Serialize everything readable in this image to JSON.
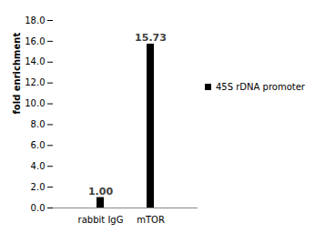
{
  "chart_data": {
    "type": "bar",
    "categories": [
      "rabbit IgG",
      "mTOR"
    ],
    "series": [
      {
        "name": "45S rDNA promoter",
        "color": "#000000",
        "values": [
          1.0,
          15.73
        ],
        "value_labels": [
          "1.00",
          "15.73"
        ]
      }
    ],
    "y_label": "fold enrichment",
    "ylim": [
      0,
      18
    ],
    "yticks": [
      {
        "value": 0,
        "label": "0.0"
      },
      {
        "value": 2,
        "label": "2.0"
      },
      {
        "value": 4,
        "label": "4.0"
      },
      {
        "value": 6,
        "label": "6.0"
      },
      {
        "value": 8,
        "label": "8.0"
      },
      {
        "value": 10,
        "label": "10.0"
      },
      {
        "value": 12,
        "label": "12.0"
      },
      {
        "value": 14,
        "label": "14.0"
      },
      {
        "value": 16,
        "label": "16.0"
      },
      {
        "value": 18,
        "label": "18.0"
      }
    ],
    "legend": "right",
    "data_labels": true,
    "grid": false
  }
}
